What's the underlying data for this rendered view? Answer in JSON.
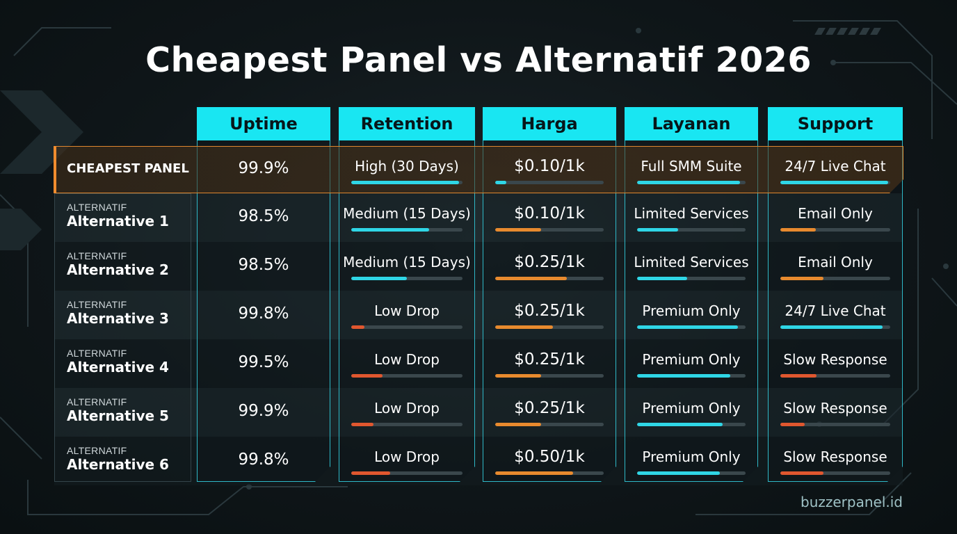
{
  "title": "Cheapest Panel vs Alternatif 2026",
  "watermark": "buzzerpanel.id",
  "colors": {
    "accent": "#19e6f2",
    "highlight": "#e0872f",
    "bar_cyan": "#2fd6e6",
    "bar_orange": "#e88a2e",
    "bar_red": "#e0572f"
  },
  "columns": [
    "Uptime",
    "Retention",
    "Harga",
    "Layanan",
    "Support"
  ],
  "rows": [
    {
      "tag": "",
      "name": "CHEAPEST PANEL",
      "highlight": true,
      "uptime": "99.9%",
      "retention": {
        "text": "High (30 Days)",
        "level": 0.97
      },
      "harga": {
        "text": "$0.10/1k",
        "level": 0.1
      },
      "layanan": {
        "text": "Full SMM Suite",
        "level": 0.95
      },
      "support": {
        "text": "24/7 Live Chat",
        "level": 0.98
      }
    },
    {
      "tag": "ALTERNATIF",
      "name": "Alternative 1",
      "uptime": "98.5%",
      "retention": {
        "text": "Medium (15 Days)",
        "level": 0.7
      },
      "harga": {
        "text": "$0.10/1k",
        "level": 0.42
      },
      "layanan": {
        "text": "Limited Services",
        "level": 0.38
      },
      "support": {
        "text": "Email Only",
        "level": 0.32
      }
    },
    {
      "tag": "ALTERNATIF",
      "name": "Alternative 2",
      "uptime": "98.5%",
      "retention": {
        "text": "Medium (15 Days)",
        "level": 0.5
      },
      "harga": {
        "text": "$0.25/1k",
        "level": 0.66
      },
      "layanan": {
        "text": "Limited Services",
        "level": 0.46
      },
      "support": {
        "text": "Email Only",
        "level": 0.39
      }
    },
    {
      "tag": "ALTERNATIF",
      "name": "Alternative 3",
      "uptime": "99.8%",
      "retention": {
        "text": "Low Drop",
        "level": 0.12
      },
      "harga": {
        "text": "$0.25/1k",
        "level": 0.53
      },
      "layanan": {
        "text": "Premium Only",
        "level": 0.93
      },
      "support": {
        "text": "24/7 Live Chat",
        "level": 0.93
      }
    },
    {
      "tag": "ALTERNATIF",
      "name": "Alternative 4",
      "uptime": "99.5%",
      "retention": {
        "text": "Low Drop",
        "level": 0.28
      },
      "harga": {
        "text": "$0.25/1k",
        "level": 0.42
      },
      "layanan": {
        "text": "Premium Only",
        "level": 0.86
      },
      "support": {
        "text": "Slow Response",
        "level": 0.33
      }
    },
    {
      "tag": "ALTERNATIF",
      "name": "Alternative 5",
      "uptime": "99.9%",
      "retention": {
        "text": "Low Drop",
        "level": 0.2
      },
      "harga": {
        "text": "$0.25/1k",
        "level": 0.42
      },
      "layanan": {
        "text": "Premium Only",
        "level": 0.79
      },
      "support": {
        "text": "Slow Response",
        "level": 0.22
      }
    },
    {
      "tag": "ALTERNATIF",
      "name": "Alternative 6",
      "uptime": "99.8%",
      "retention": {
        "text": "Low Drop",
        "level": 0.35
      },
      "harga": {
        "text": "$0.50/1k",
        "level": 0.72
      },
      "layanan": {
        "text": "Premium Only",
        "level": 0.76
      },
      "support": {
        "text": "Slow Response",
        "level": 0.39
      }
    }
  ]
}
